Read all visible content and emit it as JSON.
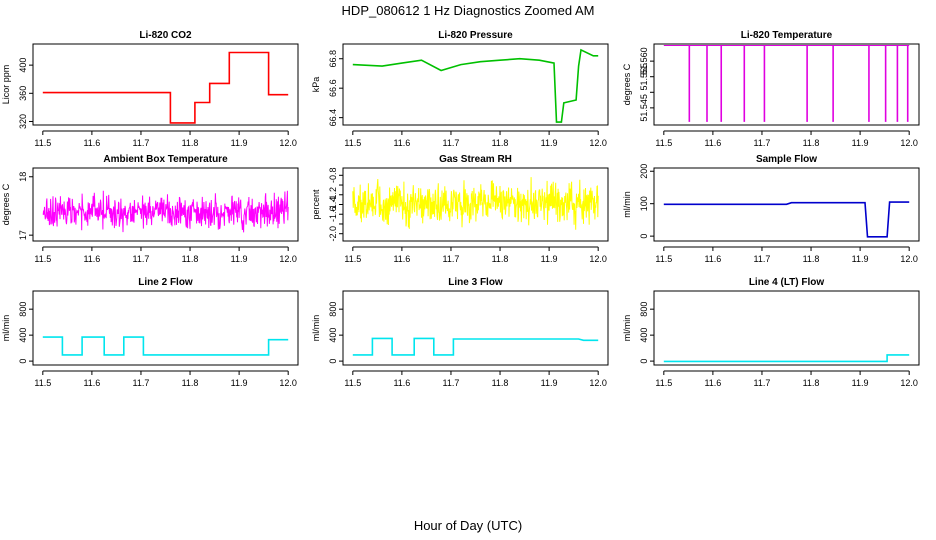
{
  "page": {
    "title": "HDP_080612  1 Hz Diagnostics Zoomed AM",
    "xlabel": "Hour of Day (UTC)"
  },
  "chart_data": [
    {
      "type": "line",
      "title": "Li-820 CO2",
      "ylabel": "Licor ppm",
      "color": "#ff0000",
      "xlim": [
        11.48,
        12.02
      ],
      "ylim": [
        315,
        430
      ],
      "xticks": [
        "11.5",
        "11.6",
        "11.7",
        "11.8",
        "11.9",
        "12.0"
      ],
      "yticks": [
        320,
        360,
        400
      ],
      "series": [
        {
          "x": [
            11.5,
            11.76,
            11.76,
            11.81,
            11.81,
            11.84,
            11.84,
            11.88,
            11.88,
            11.96,
            11.96,
            12.0
          ],
          "y": [
            361,
            361,
            318,
            318,
            347,
            347,
            374,
            374,
            418,
            418,
            358,
            358
          ]
        }
      ]
    },
    {
      "type": "line",
      "title": "Li-820 Pressure",
      "ylabel": "kPa",
      "color": "#00c000",
      "xlim": [
        11.48,
        12.02
      ],
      "ylim": [
        66.35,
        66.9
      ],
      "xticks": [
        "11.5",
        "11.6",
        "11.7",
        "11.8",
        "11.9",
        "12.0"
      ],
      "yticks": [
        66.4,
        66.6,
        66.8
      ],
      "series": [
        {
          "x": [
            11.5,
            11.56,
            11.6,
            11.64,
            11.68,
            11.72,
            11.76,
            11.8,
            11.84,
            11.88,
            11.91,
            11.915,
            11.925,
            11.93,
            11.955,
            11.96,
            11.965,
            11.99,
            12.0
          ],
          "y": [
            66.76,
            66.75,
            66.77,
            66.79,
            66.72,
            66.76,
            66.78,
            66.79,
            66.8,
            66.79,
            66.77,
            66.37,
            66.37,
            66.5,
            66.52,
            66.75,
            66.86,
            66.82,
            66.82
          ]
        }
      ]
    },
    {
      "type": "line",
      "title": "Li-820 Temperature",
      "ylabel": "degrees C",
      "color": "#e000e0",
      "xlim": [
        11.48,
        12.02
      ],
      "ylim": [
        51.5395,
        51.5655
      ],
      "xticks": [
        "11.5",
        "11.6",
        "11.7",
        "11.8",
        "11.9",
        "12.0"
      ],
      "yticks": [
        51.545,
        51.55,
        51.555,
        51.56
      ],
      "yticklabels": [
        "51.545",
        "",
        "51.555",
        "51.560"
      ],
      "series": [
        {
          "baseline": 51.565,
          "low": 51.5405,
          "spikes_x": [
            11.552,
            11.588,
            11.617,
            11.664,
            11.705,
            11.792,
            11.845,
            11.918,
            11.952,
            11.976,
            11.997
          ]
        }
      ]
    },
    {
      "type": "line",
      "title": "Ambient Box Temperature",
      "ylabel": "degrees C",
      "color": "#ff00ff",
      "xlim": [
        11.48,
        12.02
      ],
      "ylim": [
        16.9,
        18.15
      ],
      "xticks": [
        "11.5",
        "11.6",
        "11.7",
        "11.8",
        "11.9",
        "12.0"
      ],
      "yticks": [
        17.0,
        18.0
      ],
      "series": [
        {
          "x": [
            11.5,
            12.0
          ],
          "y_center": 17.4,
          "y_noise": 0.25
        }
      ]
    },
    {
      "type": "line",
      "title": "Gas Stream RH",
      "ylabel": "percent",
      "color": "#ffff00",
      "xlim": [
        11.48,
        12.02
      ],
      "ylim": [
        -2.15,
        -0.65
      ],
      "xticks": [
        "11.5",
        "11.6",
        "11.7",
        "11.8",
        "11.9",
        "12.0"
      ],
      "yticks": [
        -2.0,
        -1.8,
        -1.6,
        -1.4,
        -1.2,
        -1.0,
        -0.8
      ],
      "yticklabels": [
        "-2.0",
        "",
        "-1.6",
        "-1.4",
        "-1.2",
        "",
        "-0.8"
      ],
      "series": [
        {
          "x": [
            11.5,
            12.0
          ],
          "y_center": -1.38,
          "y_noise": 0.38
        }
      ]
    },
    {
      "type": "line",
      "title": "Sample Flow",
      "ylabel": "ml/min",
      "color": "#0000cc",
      "xlim": [
        11.48,
        12.02
      ],
      "ylim": [
        -15,
        210
      ],
      "xticks": [
        "11.5",
        "11.6",
        "11.7",
        "11.8",
        "11.9",
        "12.0"
      ],
      "yticks": [
        0,
        100,
        200
      ],
      "series": [
        {
          "x": [
            11.5,
            11.75,
            11.76,
            11.91,
            11.915,
            11.955,
            11.96,
            12.0
          ],
          "y": [
            98,
            98,
            103,
            103,
            -2,
            -2,
            105,
            105
          ]
        }
      ]
    },
    {
      "type": "line",
      "title": "Line 2 Flow",
      "ylabel": "ml/min",
      "color": "#00e5ee",
      "xlim": [
        11.48,
        12.02
      ],
      "ylim": [
        -60,
        1080
      ],
      "xticks": [
        "11.5",
        "11.6",
        "11.7",
        "11.8",
        "11.9",
        "12.0"
      ],
      "yticks": [
        0,
        400,
        800
      ],
      "series": [
        {
          "x": [
            11.5,
            11.54,
            11.54,
            11.58,
            11.58,
            11.625,
            11.625,
            11.665,
            11.665,
            11.705,
            11.705,
            11.96,
            11.96,
            12.0
          ],
          "y": [
            370,
            370,
            95,
            95,
            370,
            370,
            95,
            95,
            370,
            370,
            95,
            95,
            330,
            330
          ]
        }
      ]
    },
    {
      "type": "line",
      "title": "Line 3 Flow",
      "ylabel": "ml/min",
      "color": "#00e5ee",
      "xlim": [
        11.48,
        12.02
      ],
      "ylim": [
        -60,
        1080
      ],
      "xticks": [
        "11.5",
        "11.6",
        "11.7",
        "11.8",
        "11.9",
        "12.0"
      ],
      "yticks": [
        0,
        400,
        800
      ],
      "series": [
        {
          "x": [
            11.5,
            11.54,
            11.54,
            11.58,
            11.58,
            11.625,
            11.625,
            11.665,
            11.665,
            11.705,
            11.705,
            11.96,
            11.97,
            12.0
          ],
          "y": [
            95,
            95,
            350,
            350,
            95,
            95,
            350,
            350,
            95,
            95,
            340,
            340,
            320,
            320
          ]
        }
      ]
    },
    {
      "type": "line",
      "title": "Line 4 (LT) Flow",
      "ylabel": "ml/min",
      "color": "#00e5ee",
      "xlim": [
        11.48,
        12.02
      ],
      "ylim": [
        -60,
        1080
      ],
      "xticks": [
        "11.5",
        "11.6",
        "11.7",
        "11.8",
        "11.9",
        "12.0"
      ],
      "yticks": [
        0,
        400,
        800
      ],
      "series": [
        {
          "x": [
            11.5,
            11.955,
            11.955,
            12.0
          ],
          "y": [
            -5,
            -5,
            95,
            95
          ]
        }
      ]
    }
  ]
}
